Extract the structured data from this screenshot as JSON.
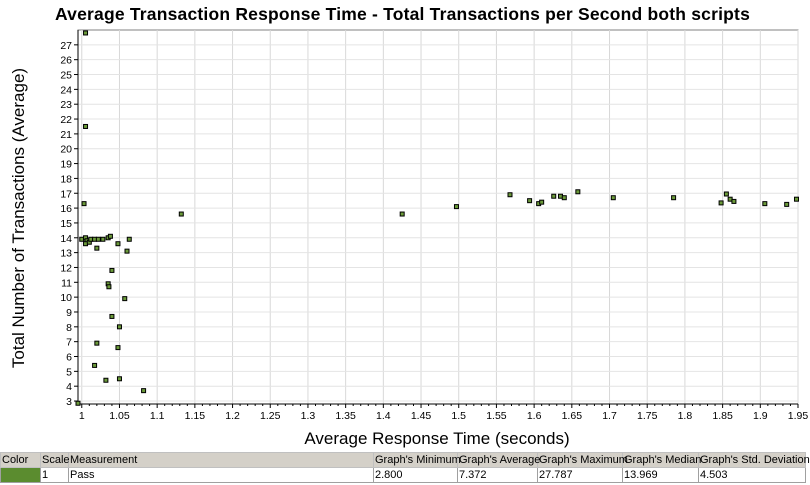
{
  "chart_data": {
    "type": "scatter",
    "title": "Average Transaction Response Time - Total Transactions per Second both scripts",
    "xlabel": "Average Response Time (seconds)",
    "ylabel": "Total Number of Transactions (Average)",
    "xlim": [
      0.995,
      1.95
    ],
    "ylim": [
      2.8,
      28
    ],
    "xticks": [
      "1",
      "1.05",
      "1.1",
      "1.15",
      "1.2",
      "1.25",
      "1.3",
      "1.35",
      "1.4",
      "1.45",
      "1.5",
      "1.55",
      "1.6",
      "1.65",
      "1.7",
      "1.75",
      "1.8",
      "1.85",
      "1.9",
      "1.95"
    ],
    "yticks": [
      "3",
      "4",
      "5",
      "6",
      "7",
      "8",
      "9",
      "10",
      "11",
      "12",
      "13",
      "14",
      "15",
      "16",
      "17",
      "18",
      "19",
      "20",
      "21",
      "22",
      "23",
      "24",
      "25",
      "26",
      "27"
    ],
    "grid": true,
    "series": [
      {
        "name": "Pass",
        "color": "#6b9a3a",
        "points": [
          [
            0.995,
            2.85
          ],
          [
            1.005,
            27.8
          ],
          [
            1.005,
            21.5
          ],
          [
            1.003,
            16.3
          ],
          [
            1.0,
            13.9
          ],
          [
            1.005,
            14.0
          ],
          [
            1.007,
            13.8
          ],
          [
            1.005,
            13.6
          ],
          [
            1.01,
            13.7
          ],
          [
            1.012,
            13.9
          ],
          [
            1.017,
            13.9
          ],
          [
            1.022,
            13.9
          ],
          [
            1.028,
            13.9
          ],
          [
            1.035,
            14.0
          ],
          [
            1.038,
            14.1
          ],
          [
            1.02,
            13.3
          ],
          [
            1.048,
            13.6
          ],
          [
            1.063,
            13.9
          ],
          [
            1.06,
            13.1
          ],
          [
            1.04,
            11.8
          ],
          [
            1.035,
            10.9
          ],
          [
            1.036,
            10.7
          ],
          [
            1.057,
            9.9
          ],
          [
            1.04,
            8.7
          ],
          [
            1.05,
            8.0
          ],
          [
            1.02,
            6.9
          ],
          [
            1.048,
            6.6
          ],
          [
            1.017,
            5.4
          ],
          [
            1.032,
            4.4
          ],
          [
            1.05,
            4.5
          ],
          [
            1.082,
            3.7
          ],
          [
            1.132,
            15.6
          ],
          [
            1.425,
            15.6
          ],
          [
            1.497,
            16.1
          ],
          [
            1.568,
            16.9
          ],
          [
            1.594,
            16.5
          ],
          [
            1.606,
            16.3
          ],
          [
            1.61,
            16.4
          ],
          [
            1.626,
            16.8
          ],
          [
            1.635,
            16.8
          ],
          [
            1.64,
            16.7
          ],
          [
            1.658,
            17.1
          ],
          [
            1.705,
            16.7
          ],
          [
            1.785,
            16.7
          ],
          [
            1.848,
            16.35
          ],
          [
            1.855,
            16.95
          ],
          [
            1.86,
            16.6
          ],
          [
            1.865,
            16.45
          ],
          [
            1.906,
            16.3
          ],
          [
            1.935,
            16.25
          ],
          [
            1.948,
            16.6
          ]
        ]
      }
    ]
  },
  "legend_table": {
    "headers": [
      "Color",
      "Scale",
      "Measurement",
      "Graph's Minimum",
      "Graph's Average",
      "Graph's Maximum",
      "Graph's Median",
      "Graph's Std. Deviation"
    ],
    "rows": [
      {
        "color": "#5b8c2f",
        "scale": "1",
        "measurement": "Pass",
        "minimum": "2.800",
        "average": "7.372",
        "maximum": "27.787",
        "median": "13.969",
        "std_dev": "4.503"
      }
    ]
  }
}
